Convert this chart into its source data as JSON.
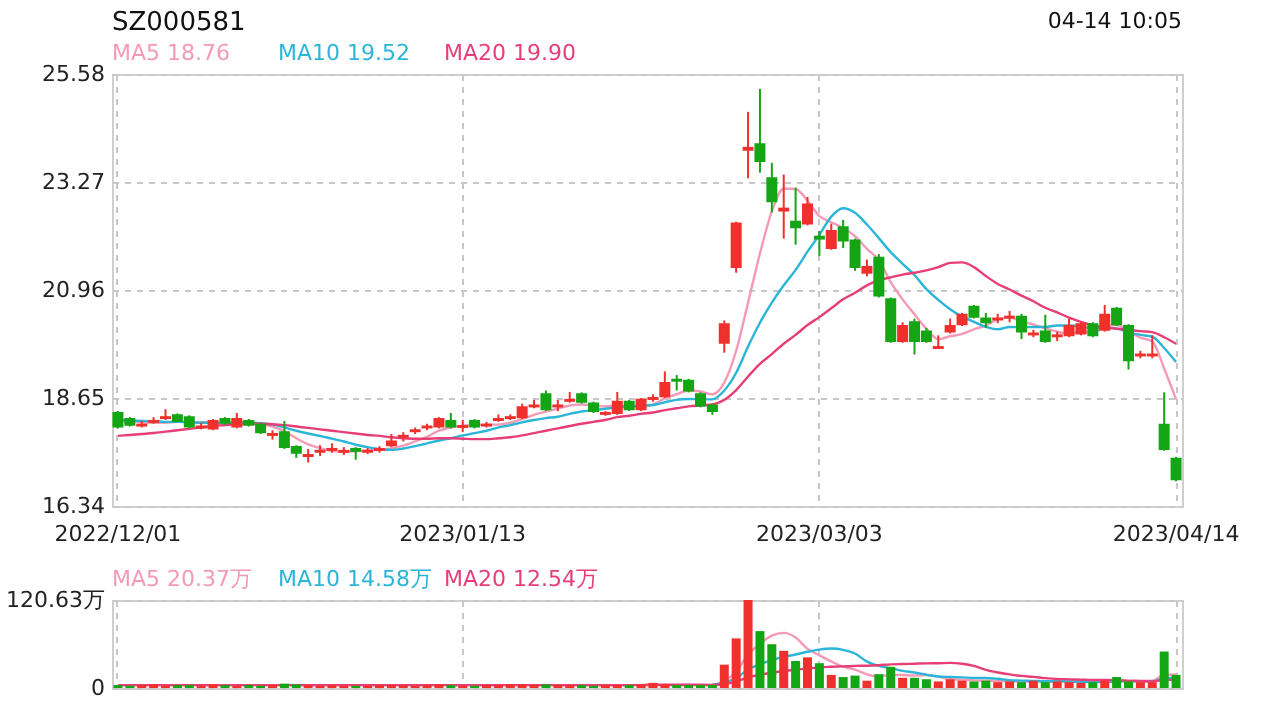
{
  "chart_data": [
    {
      "type": "candlestick",
      "title": "SZ000581",
      "annotations": [
        "04-14 10:05"
      ],
      "legend": "top left",
      "grid": true,
      "categories": [
        "2022/12/01",
        null,
        null,
        null,
        null,
        null,
        null,
        null,
        null,
        null,
        null,
        null,
        null,
        null,
        null,
        null,
        null,
        null,
        null,
        null,
        null,
        null,
        null,
        null,
        null,
        null,
        null,
        null,
        null,
        "2023/01/13",
        null,
        null,
        null,
        null,
        null,
        null,
        null,
        null,
        null,
        null,
        null,
        null,
        null,
        null,
        null,
        null,
        null,
        null,
        null,
        null,
        null,
        null,
        null,
        null,
        null,
        null,
        null,
        null,
        null,
        "2023/03/03",
        null,
        null,
        null,
        null,
        null,
        null,
        null,
        null,
        null,
        null,
        null,
        null,
        null,
        null,
        null,
        null,
        null,
        null,
        null,
        null,
        null,
        null,
        null,
        null,
        null,
        null,
        null,
        null,
        null,
        "2023/04/14"
      ],
      "ylim": [
        16.34,
        25.58
      ],
      "yticks": [
        16.34,
        18.65,
        20.96,
        23.27,
        25.58
      ],
      "ohlc": [
        [
          18.33,
          18.37,
          18.0,
          18.04
        ],
        [
          18.2,
          18.24,
          18.04,
          18.08
        ],
        [
          18.06,
          18.16,
          18.02,
          18.08
        ],
        [
          18.14,
          18.24,
          18.1,
          18.16
        ],
        [
          18.22,
          18.41,
          18.18,
          18.24
        ],
        [
          18.28,
          18.32,
          18.14,
          18.16
        ],
        [
          18.24,
          18.28,
          18.0,
          18.04
        ],
        [
          18.02,
          18.12,
          17.98,
          18.04
        ],
        [
          18.0,
          18.2,
          17.96,
          18.16
        ],
        [
          18.2,
          18.24,
          18.08,
          18.12
        ],
        [
          18.04,
          18.33,
          18.0,
          18.2
        ],
        [
          18.16,
          18.2,
          18.04,
          18.08
        ],
        [
          18.08,
          18.12,
          17.88,
          17.92
        ],
        [
          17.86,
          17.96,
          17.76,
          17.88
        ],
        [
          17.92,
          18.16,
          17.56,
          17.6
        ],
        [
          17.6,
          17.64,
          17.37,
          17.48
        ],
        [
          17.41,
          17.56,
          17.27,
          17.43
        ],
        [
          17.5,
          17.64,
          17.41,
          17.52
        ],
        [
          17.54,
          17.68,
          17.48,
          17.56
        ],
        [
          17.5,
          17.6,
          17.43,
          17.52
        ],
        [
          17.56,
          17.6,
          17.33,
          17.52
        ],
        [
          17.5,
          17.58,
          17.45,
          17.52
        ],
        [
          17.54,
          17.62,
          17.48,
          17.56
        ],
        [
          17.64,
          17.88,
          17.6,
          17.72
        ],
        [
          17.82,
          17.92,
          17.72,
          17.84
        ],
        [
          17.94,
          18.02,
          17.88,
          17.96
        ],
        [
          18.02,
          18.1,
          17.96,
          18.04
        ],
        [
          18.04,
          18.24,
          18.0,
          18.2
        ],
        [
          18.16,
          18.33,
          18.0,
          18.04
        ],
        [
          18.03,
          18.18,
          17.92,
          18.05
        ],
        [
          18.16,
          18.2,
          18.0,
          18.04
        ],
        [
          18.06,
          18.14,
          18.02,
          18.08
        ],
        [
          18.18,
          18.3,
          18.14,
          18.2
        ],
        [
          18.22,
          18.3,
          18.18,
          18.24
        ],
        [
          18.24,
          18.53,
          18.2,
          18.45
        ],
        [
          18.47,
          18.61,
          18.43,
          18.49
        ],
        [
          18.73,
          18.81,
          18.37,
          18.41
        ],
        [
          18.47,
          18.61,
          18.37,
          18.49
        ],
        [
          18.59,
          18.78,
          18.55,
          18.61
        ],
        [
          18.73,
          18.77,
          18.53,
          18.57
        ],
        [
          18.53,
          18.57,
          18.33,
          18.37
        ],
        [
          18.31,
          18.37,
          18.27,
          18.33
        ],
        [
          18.33,
          18.78,
          18.29,
          18.57
        ],
        [
          18.57,
          18.61,
          18.37,
          18.41
        ],
        [
          18.41,
          18.65,
          18.37,
          18.61
        ],
        [
          18.63,
          18.73,
          18.57,
          18.65
        ],
        [
          18.69,
          19.22,
          18.65,
          18.97
        ],
        [
          19.04,
          19.14,
          18.81,
          19.02
        ],
        [
          19.02,
          19.06,
          18.77,
          18.81
        ],
        [
          18.73,
          18.77,
          18.45,
          18.49
        ],
        [
          18.49,
          18.53,
          18.29,
          18.37
        ],
        [
          19.83,
          20.31,
          19.62,
          20.23
        ],
        [
          21.45,
          22.42,
          21.33,
          22.38
        ],
        [
          23.96,
          24.77,
          23.35,
          24.0
        ],
        [
          24.08,
          25.26,
          23.47,
          23.72
        ],
        [
          23.35,
          23.68,
          22.62,
          22.86
        ],
        [
          22.66,
          23.43,
          22.06,
          22.7
        ],
        [
          22.42,
          23.15,
          21.93,
          22.3
        ],
        [
          22.38,
          22.95,
          22.34,
          22.79
        ],
        [
          22.1,
          22.22,
          21.69,
          22.06
        ],
        [
          21.86,
          22.38,
          21.82,
          22.22
        ],
        [
          22.3,
          22.46,
          21.86,
          22.02
        ],
        [
          22.02,
          22.06,
          21.37,
          21.45
        ],
        [
          21.33,
          21.61,
          21.25,
          21.45
        ],
        [
          21.65,
          21.73,
          20.8,
          20.84
        ],
        [
          20.76,
          20.8,
          19.83,
          19.87
        ],
        [
          19.87,
          20.27,
          19.83,
          20.19
        ],
        [
          20.27,
          20.35,
          19.58,
          19.87
        ],
        [
          20.07,
          20.15,
          19.83,
          19.87
        ],
        [
          19.72,
          19.99,
          19.7,
          19.74
        ],
        [
          20.07,
          20.35,
          20.03,
          20.19
        ],
        [
          20.23,
          20.47,
          20.19,
          20.43
        ],
        [
          20.6,
          20.64,
          20.35,
          20.39
        ],
        [
          20.35,
          20.47,
          20.15,
          20.27
        ],
        [
          20.33,
          20.45,
          20.25,
          20.35
        ],
        [
          20.37,
          20.51,
          20.27,
          20.39
        ],
        [
          20.39,
          20.45,
          19.91,
          20.07
        ],
        [
          20.01,
          20.11,
          19.95,
          20.03
        ],
        [
          20.07,
          20.43,
          19.83,
          19.87
        ],
        [
          19.97,
          20.07,
          19.87,
          19.99
        ],
        [
          19.99,
          20.35,
          19.95,
          20.19
        ],
        [
          20.03,
          20.27,
          19.99,
          20.23
        ],
        [
          20.23,
          20.27,
          19.95,
          19.99
        ],
        [
          20.11,
          20.64,
          20.07,
          20.43
        ],
        [
          20.56,
          20.6,
          20.19,
          20.23
        ],
        [
          20.19,
          20.23,
          19.26,
          19.46
        ],
        [
          19.56,
          19.66,
          19.5,
          19.58
        ],
        [
          19.56,
          19.99,
          19.5,
          19.58
        ],
        [
          18.08,
          18.77,
          17.52,
          17.56
        ],
        [
          17.35,
          17.39,
          16.87,
          16.91
        ]
      ],
      "colors": [
        "#14a514",
        "#14a514",
        "#f0302c",
        "#f0302c",
        "#f0302c",
        "#14a514",
        "#14a514",
        "#f0302c",
        "#f0302c",
        "#14a514",
        "#f0302c",
        "#14a514",
        "#14a514",
        "#f0302c",
        "#14a514",
        "#14a514",
        "#f0302c",
        "#f0302c",
        "#f0302c",
        "#f0302c",
        "#14a514",
        "#f0302c",
        "#f0302c",
        "#f0302c",
        "#f0302c",
        "#f0302c",
        "#f0302c",
        "#f0302c",
        "#14a514",
        "#f0302c",
        "#14a514",
        "#f0302c",
        "#f0302c",
        "#f0302c",
        "#f0302c",
        "#f0302c",
        "#14a514",
        "#f0302c",
        "#f0302c",
        "#14a514",
        "#14a514",
        "#f0302c",
        "#f0302c",
        "#14a514",
        "#f0302c",
        "#f0302c",
        "#f0302c",
        "#14a514",
        "#14a514",
        "#14a514",
        "#14a514",
        "#f0302c",
        "#f0302c",
        "#f0302c",
        "#14a514",
        "#14a514",
        "#f0302c",
        "#14a514",
        "#f0302c",
        "#14a514",
        "#f0302c",
        "#14a514",
        "#14a514",
        "#f0302c",
        "#14a514",
        "#14a514",
        "#f0302c",
        "#14a514",
        "#14a514",
        "#f0302c",
        "#f0302c",
        "#f0302c",
        "#14a514",
        "#14a514",
        "#f0302c",
        "#f0302c",
        "#14a514",
        "#f0302c",
        "#14a514",
        "#f0302c",
        "#f0302c",
        "#f0302c",
        "#14a514",
        "#f0302c",
        "#14a514",
        "#14a514",
        "#f0302c",
        "#f0302c",
        "#14a514",
        "#14a514"
      ],
      "series": [
        {
          "name": "MA5 18.76",
          "type": "line",
          "color": "#f59ab6",
          "values": [
            18.15,
            18.15,
            18.13,
            18.12,
            18.12,
            18.14,
            18.14,
            18.13,
            18.13,
            18.1,
            18.11,
            18.12,
            18.1,
            18.04,
            17.94,
            17.79,
            17.66,
            17.58,
            17.52,
            17.5,
            17.51,
            17.53,
            17.54,
            17.57,
            17.63,
            17.72,
            17.82,
            17.95,
            18.02,
            18.06,
            18.07,
            18.08,
            18.08,
            18.12,
            18.2,
            18.29,
            18.36,
            18.42,
            18.49,
            18.51,
            18.49,
            18.47,
            18.49,
            18.45,
            18.46,
            18.51,
            18.64,
            18.73,
            18.81,
            18.79,
            18.73,
            18.98,
            19.66,
            20.69,
            21.74,
            22.64,
            23.13,
            23.12,
            22.87,
            22.54,
            22.41,
            22.28,
            22.11,
            21.84,
            21.6,
            21.13,
            20.76,
            20.44,
            20.13,
            19.91,
            19.97,
            20.02,
            20.12,
            20.2,
            20.33,
            20.37,
            20.29,
            20.22,
            20.14,
            20.07,
            20.03,
            20.06,
            20.05,
            20.17,
            20.21,
            20.07,
            19.94,
            19.86,
            19.28,
            18.62
          ]
        },
        {
          "name": "MA10 19.52",
          "type": "line",
          "color": "#2bb5d8",
          "values": [
            18.18,
            18.17,
            18.16,
            18.15,
            18.14,
            18.14,
            18.13,
            18.12,
            18.12,
            18.11,
            18.13,
            18.13,
            18.11,
            18.08,
            18.02,
            17.95,
            17.89,
            17.84,
            17.78,
            17.72,
            17.65,
            17.6,
            17.56,
            17.54,
            17.57,
            17.62,
            17.68,
            17.74,
            17.79,
            17.85,
            17.9,
            17.95,
            18.02,
            18.07,
            18.13,
            18.18,
            18.22,
            18.25,
            18.31,
            18.36,
            18.39,
            18.42,
            18.45,
            18.47,
            18.49,
            18.5,
            18.56,
            18.61,
            18.63,
            18.62,
            18.62,
            18.81,
            19.19,
            19.75,
            20.26,
            20.69,
            21.06,
            21.39,
            21.78,
            22.14,
            22.53,
            22.71,
            22.61,
            22.36,
            22.07,
            21.77,
            21.52,
            21.28,
            20.98,
            20.75,
            20.55,
            20.39,
            20.28,
            20.17,
            20.12,
            20.17,
            20.16,
            20.17,
            20.17,
            20.2,
            20.2,
            20.18,
            20.14,
            20.15,
            20.14,
            20.05,
            20.0,
            19.96,
            19.72,
            19.42
          ]
        },
        {
          "name": "MA20 19.90",
          "type": "line",
          "color": "#e83e76",
          "values": [
            17.84,
            17.86,
            17.88,
            17.9,
            17.93,
            17.96,
            17.99,
            18.02,
            18.05,
            18.07,
            18.09,
            18.1,
            18.1,
            18.09,
            18.07,
            18.04,
            18.01,
            17.98,
            17.95,
            17.92,
            17.89,
            17.86,
            17.84,
            17.81,
            17.79,
            17.78,
            17.78,
            17.79,
            17.79,
            17.78,
            17.77,
            17.77,
            17.79,
            17.81,
            17.85,
            17.9,
            17.95,
            18.0,
            18.05,
            18.1,
            18.14,
            18.18,
            18.24,
            18.27,
            18.31,
            18.34,
            18.39,
            18.43,
            18.47,
            18.49,
            18.51,
            18.61,
            18.82,
            19.11,
            19.38,
            19.59,
            19.81,
            20.0,
            20.21,
            20.38,
            20.57,
            20.76,
            20.9,
            21.06,
            21.17,
            21.23,
            21.29,
            21.33,
            21.38,
            21.45,
            21.54,
            21.55,
            21.45,
            21.26,
            21.09,
            20.97,
            20.84,
            20.72,
            20.58,
            20.48,
            20.37,
            20.28,
            20.21,
            20.16,
            20.13,
            20.11,
            20.08,
            20.06,
            19.95,
            19.81
          ]
        }
      ]
    },
    {
      "type": "bar",
      "legend": "top left",
      "grid": true,
      "tick_labels": "y",
      "categories": [
        "2022/12/01",
        null,
        null,
        null,
        null,
        null,
        null,
        null,
        null,
        null,
        null,
        null,
        null,
        null,
        null,
        null,
        null,
        null,
        null,
        null,
        null,
        null,
        null,
        null,
        null,
        null,
        null,
        null,
        null,
        "2023/01/13",
        null,
        null,
        null,
        null,
        null,
        null,
        null,
        null,
        null,
        null,
        null,
        null,
        null,
        null,
        null,
        null,
        null,
        null,
        null,
        null,
        null,
        null,
        null,
        null,
        null,
        null,
        null,
        null,
        null,
        "2023/03/03",
        null,
        null,
        null,
        null,
        null,
        null,
        null,
        null,
        null,
        null,
        null,
        null,
        null,
        null,
        null,
        null,
        null,
        null,
        null,
        null,
        null,
        null,
        null,
        null,
        null,
        null,
        null,
        null,
        null,
        "2023/04/14"
      ],
      "ylim": [
        0,
        120.63
      ],
      "yticks": [
        0,
        {
          "value": 120.63,
          "label": "120.63万"
        }
      ],
      "series": [
        {
          "type": "bar",
          "values": [
            4,
            3,
            4,
            5,
            3,
            4,
            4,
            3,
            5,
            4,
            3,
            4,
            3,
            4,
            6,
            5,
            4,
            3,
            4,
            3,
            3,
            3,
            4,
            4,
            4,
            3,
            4,
            5,
            4,
            3,
            3,
            4,
            4,
            5,
            5,
            4,
            5,
            4,
            4,
            4,
            3,
            4,
            4,
            4,
            5,
            7,
            5,
            4,
            4,
            4,
            4,
            32,
            68,
            120.63,
            78,
            60,
            51,
            37,
            42,
            34,
            18,
            15,
            17,
            10,
            19,
            29,
            14,
            14,
            12,
            9,
            12,
            10,
            9,
            10,
            8,
            9,
            8,
            10,
            8,
            9,
            8,
            7,
            8,
            10,
            15,
            9,
            8,
            8,
            50,
            18
          ],
          "colors": [
            "#14a514",
            "#14a514",
            "#f0302c",
            "#f0302c",
            "#f0302c",
            "#14a514",
            "#14a514",
            "#f0302c",
            "#f0302c",
            "#14a514",
            "#f0302c",
            "#14a514",
            "#14a514",
            "#f0302c",
            "#14a514",
            "#14a514",
            "#f0302c",
            "#f0302c",
            "#f0302c",
            "#f0302c",
            "#14a514",
            "#f0302c",
            "#f0302c",
            "#f0302c",
            "#f0302c",
            "#f0302c",
            "#f0302c",
            "#f0302c",
            "#14a514",
            "#f0302c",
            "#14a514",
            "#f0302c",
            "#f0302c",
            "#f0302c",
            "#f0302c",
            "#f0302c",
            "#14a514",
            "#f0302c",
            "#f0302c",
            "#14a514",
            "#14a514",
            "#f0302c",
            "#f0302c",
            "#14a514",
            "#f0302c",
            "#f0302c",
            "#f0302c",
            "#14a514",
            "#14a514",
            "#14a514",
            "#14a514",
            "#f0302c",
            "#f0302c",
            "#f0302c",
            "#14a514",
            "#14a514",
            "#f0302c",
            "#14a514",
            "#f0302c",
            "#14a514",
            "#f0302c",
            "#14a514",
            "#14a514",
            "#f0302c",
            "#14a514",
            "#14a514",
            "#f0302c",
            "#14a514",
            "#14a514",
            "#f0302c",
            "#f0302c",
            "#f0302c",
            "#14a514",
            "#14a514",
            "#f0302c",
            "#f0302c",
            "#14a514",
            "#f0302c",
            "#14a514",
            "#f0302c",
            "#f0302c",
            "#f0302c",
            "#14a514",
            "#f0302c",
            "#14a514",
            "#14a514",
            "#f0302c",
            "#f0302c",
            "#14a514",
            "#14a514"
          ]
        },
        {
          "name": "MA5 20.37万",
          "type": "line",
          "color": "#f59ab6",
          "values": [
            4,
            4,
            4,
            4,
            4,
            4,
            4,
            4,
            4,
            4,
            4,
            4,
            4,
            4,
            4,
            4,
            4,
            4,
            4,
            4,
            4,
            4,
            4,
            4,
            4,
            4,
            4,
            4,
            4,
            4,
            4,
            4,
            4,
            4,
            4,
            4,
            4,
            4,
            4,
            4,
            4,
            4,
            4,
            4,
            4,
            4.8,
            5.0,
            5.0,
            5.0,
            4.8,
            4.2,
            9.6,
            22.4,
            45.73,
            60.53,
            71.73,
            75.53,
            69.33,
            53.6,
            44.8,
            36.4,
            29.2,
            25.2,
            18.8,
            15.8,
            18.0,
            17.8,
            17.2,
            17.6,
            15.6,
            12.2,
            11.4,
            10.4,
            10.0,
            9.8,
            9.2,
            8.8,
            9.0,
            8.6,
            8.8,
            8.6,
            8.4,
            8.0,
            8.4,
            9.6,
            9.8,
            10.0,
            10.0,
            18.0,
            18.6
          ]
        },
        {
          "name": "MA10 14.58万",
          "type": "line",
          "color": "#2bb5d8",
          "values": [
            null,
            null,
            null,
            null,
            null,
            null,
            null,
            null,
            null,
            null,
            null,
            null,
            null,
            null,
            null,
            null,
            null,
            null,
            null,
            null,
            null,
            null,
            null,
            null,
            null,
            null,
            null,
            null,
            null,
            null,
            null,
            null,
            null,
            null,
            null,
            null,
            null,
            null,
            null,
            null,
            null,
            null,
            null,
            null,
            null,
            null,
            null,
            null,
            null,
            null,
            4.5,
            7.3,
            13.7,
            25.36,
            32.66,
            37.96,
            42.56,
            45.86,
            49.66,
            52.66,
            54.06,
            52.36,
            47.26,
            36.2,
            30.3,
            27.2,
            23.5,
            21.2,
            18.2,
            15.7,
            15.1,
            14.6,
            13.8,
            13.8,
            12.7,
            10.7,
            10.1,
            9.7,
            9.3,
            9.3,
            8.9,
            8.6,
            8.5,
            8.5,
            9.2,
            9.2,
            9.2,
            9.0,
            13.2,
            14.1
          ]
        },
        {
          "name": "MA20 12.54万",
          "type": "line",
          "color": "#e83e76",
          "values": [
            4,
            4,
            4,
            4,
            4,
            4,
            4,
            4,
            4,
            4,
            4,
            4,
            4,
            4,
            4,
            4,
            4,
            4,
            4,
            4,
            4,
            4,
            4,
            4,
            4,
            4,
            4,
            4,
            4,
            4,
            4,
            4,
            4,
            4,
            4,
            4,
            4,
            4,
            4,
            4,
            4,
            4,
            4,
            4,
            4,
            4.1,
            4.1,
            4.1,
            4.1,
            4.1,
            4.15,
            5.55,
            8.75,
            14.53,
            18.18,
            20.98,
            23.28,
            24.93,
            26.83,
            28.33,
            29.08,
            29.63,
            30.28,
            30.58,
            31.28,
            32.38,
            32.83,
            33.33,
            33.73,
            33.98,
            34.38,
            33.28,
            30.33,
            24.8,
            21.3,
            18.75,
            16.6,
            15.25,
            13.55,
            12.3,
            11.8,
            11.4,
            10.95,
            10.95,
            10.75,
            9.75,
            9.45,
            9.15,
            11.05,
            11.5
          ]
        }
      ]
    }
  ]
}
